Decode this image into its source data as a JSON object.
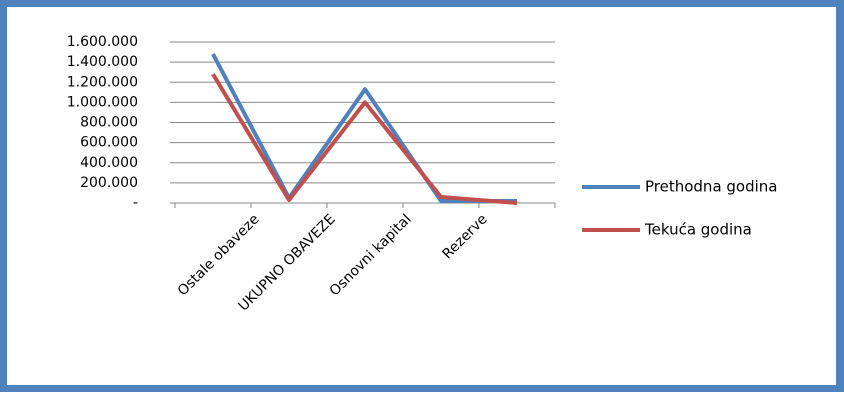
{
  "chart_data": {
    "type": "line",
    "categories": [
      null,
      "Ostale obaveze",
      "UKUPNO OBAVEZE",
      "Osnovni kapital",
      "Rezerve"
    ],
    "series": [
      {
        "name": "Prethodna godina",
        "color": "#4f81bd",
        "values": [
          1480000,
          50000,
          1130000,
          20000,
          20000
        ]
      },
      {
        "name": "Tekuća godina",
        "color": "#c0504d",
        "values": [
          1280000,
          30000,
          1000000,
          60000,
          0
        ]
      }
    ],
    "ylim": [
      0,
      1600000
    ],
    "yticks": [
      {
        "value": 0,
        "label": "-"
      },
      {
        "value": 200000,
        "label": "200.000"
      },
      {
        "value": 400000,
        "label": "400.000"
      },
      {
        "value": 600000,
        "label": "600.000"
      },
      {
        "value": 800000,
        "label": "800.000"
      },
      {
        "value": 1000000,
        "label": "1.000.000"
      },
      {
        "value": 1200000,
        "label": "1.200.000"
      },
      {
        "value": 1400000,
        "label": "1.400.000"
      },
      {
        "value": 1600000,
        "label": "1.600.000"
      }
    ],
    "grid": true,
    "legend": "right"
  }
}
